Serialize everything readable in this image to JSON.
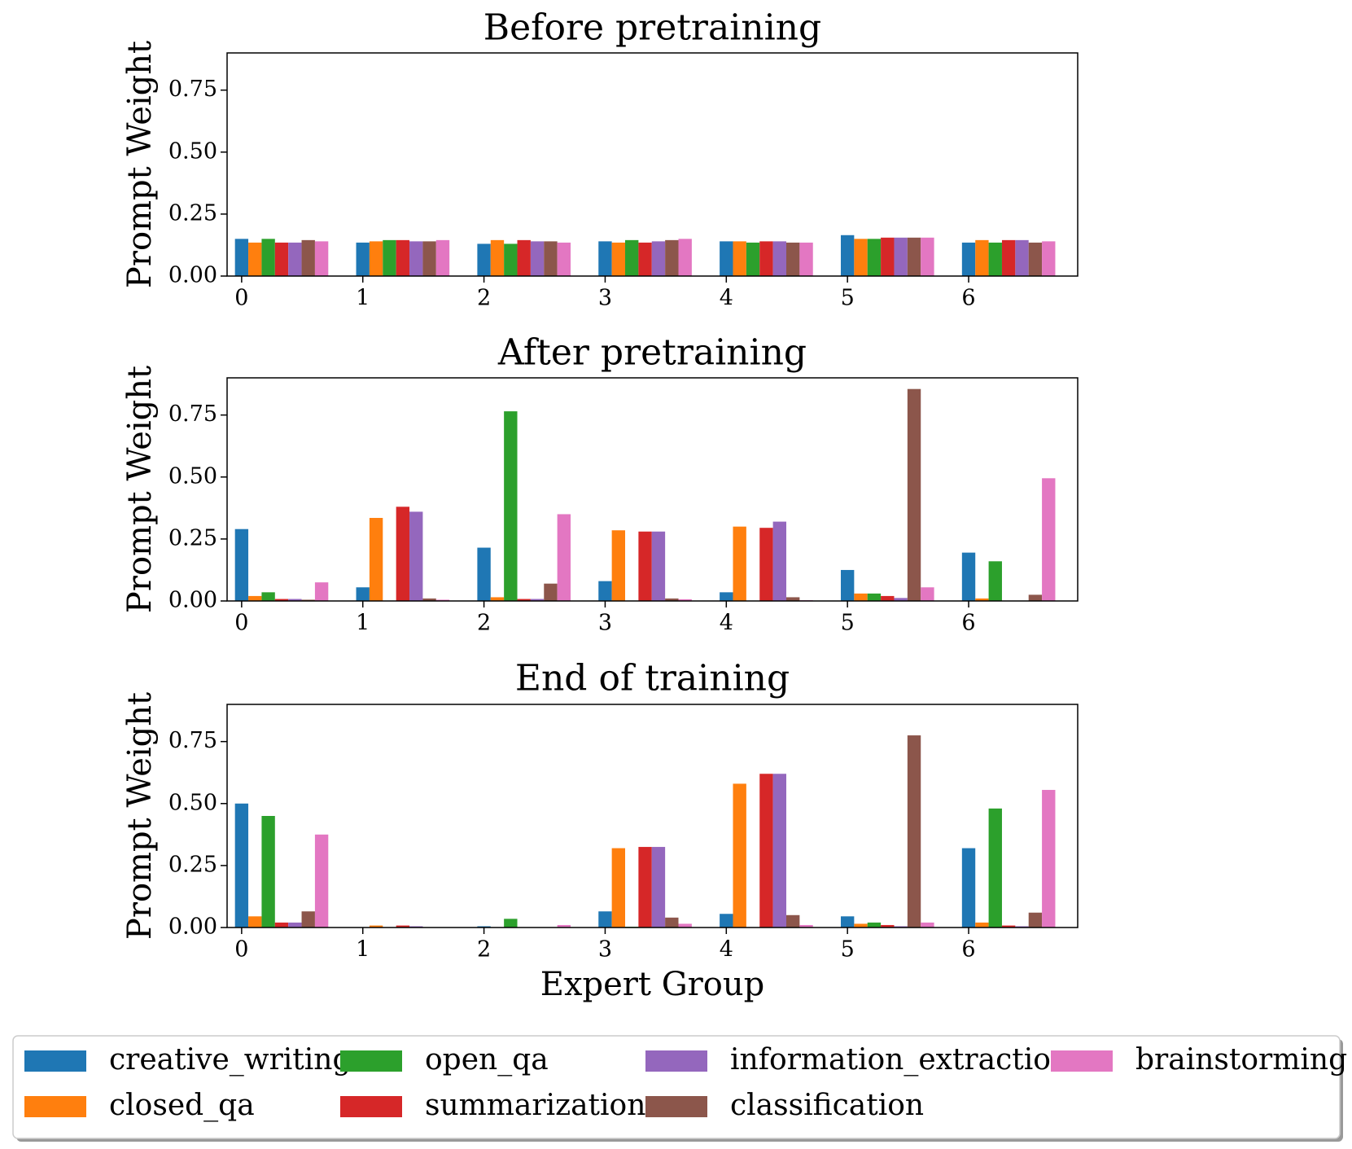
{
  "chart_data": [
    {
      "type": "bar",
      "title": "Before pretraining",
      "y_label": "Prompt Weight",
      "categories": [
        "0",
        "1",
        "2",
        "3",
        "4",
        "5",
        "6"
      ],
      "xlim": [
        -0.12,
        6.9
      ],
      "ylim": [
        0,
        0.9
      ],
      "yticks": [
        {
          "value": 0,
          "label": "0.00"
        },
        {
          "value": 0.25,
          "label": "0.25"
        },
        {
          "value": 0.5,
          "label": "0.50"
        },
        {
          "value": 0.75,
          "label": "0.75"
        }
      ],
      "series": [
        {
          "name": "creative_writing",
          "color": "#1f77b4",
          "values": [
            0.15,
            0.135,
            0.13,
            0.14,
            0.14,
            0.165,
            0.135
          ]
        },
        {
          "name": "closed_qa",
          "color": "#ff7f0e",
          "values": [
            0.135,
            0.14,
            0.145,
            0.135,
            0.14,
            0.15,
            0.145
          ]
        },
        {
          "name": "open_qa",
          "color": "#2ca02c",
          "values": [
            0.15,
            0.145,
            0.13,
            0.145,
            0.135,
            0.15,
            0.135
          ]
        },
        {
          "name": "summarization",
          "color": "#d62728",
          "values": [
            0.135,
            0.145,
            0.145,
            0.135,
            0.14,
            0.155,
            0.145
          ]
        },
        {
          "name": "information_extraction",
          "color": "#9467bd",
          "values": [
            0.135,
            0.14,
            0.14,
            0.14,
            0.14,
            0.155,
            0.145
          ]
        },
        {
          "name": "classification",
          "color": "#8c564b",
          "values": [
            0.145,
            0.14,
            0.14,
            0.145,
            0.135,
            0.155,
            0.135
          ]
        },
        {
          "name": "brainstorming",
          "color": "#e377c2",
          "values": [
            0.14,
            0.145,
            0.135,
            0.15,
            0.135,
            0.155,
            0.14
          ]
        }
      ]
    },
    {
      "type": "bar",
      "title": "After pretraining",
      "y_label": "Prompt Weight",
      "categories": [
        "0",
        "1",
        "2",
        "3",
        "4",
        "5",
        "6"
      ],
      "xlim": [
        -0.12,
        6.9
      ],
      "ylim": [
        0,
        0.9
      ],
      "yticks": [
        {
          "value": 0,
          "label": "0.00"
        },
        {
          "value": 0.25,
          "label": "0.25"
        },
        {
          "value": 0.5,
          "label": "0.50"
        },
        {
          "value": 0.75,
          "label": "0.75"
        }
      ],
      "series": [
        {
          "values": [
            0.29,
            0.055,
            0.215,
            0.08,
            0.035,
            0.125,
            0.195
          ]
        },
        {
          "values": [
            0.02,
            0.335,
            0.015,
            0.285,
            0.3,
            0.03,
            0.01
          ]
        },
        {
          "values": [
            0.035,
            0,
            0.765,
            0,
            0,
            0.03,
            0.16
          ]
        },
        {
          "values": [
            0.008,
            0.38,
            0.008,
            0.28,
            0.295,
            0.02,
            0
          ]
        },
        {
          "values": [
            0.008,
            0.36,
            0.008,
            0.28,
            0.32,
            0.012,
            0
          ]
        },
        {
          "values": [
            0.005,
            0.01,
            0.07,
            0.01,
            0.015,
            0.855,
            0.025
          ]
        },
        {
          "values": [
            0.075,
            0.005,
            0.35,
            0.007,
            0.003,
            0.055,
            0.495
          ]
        }
      ]
    },
    {
      "type": "bar",
      "title": "End of training",
      "y_label": "Prompt Weight",
      "x_label": "Expert Group",
      "categories": [
        "0",
        "1",
        "2",
        "3",
        "4",
        "5",
        "6"
      ],
      "xlim": [
        -0.12,
        6.9
      ],
      "ylim": [
        0,
        0.9
      ],
      "yticks": [
        {
          "value": 0,
          "label": "0.00"
        },
        {
          "value": 0.25,
          "label": "0.25"
        },
        {
          "value": 0.5,
          "label": "0.50"
        },
        {
          "value": 0.75,
          "label": "0.75"
        }
      ],
      "series": [
        {
          "values": [
            0.5,
            0,
            0.005,
            0.065,
            0.055,
            0.045,
            0.32
          ]
        },
        {
          "values": [
            0.045,
            0.008,
            0,
            0.32,
            0.58,
            0.015,
            0.02
          ]
        },
        {
          "values": [
            0.45,
            0,
            0.035,
            0.003,
            0,
            0.02,
            0.48
          ]
        },
        {
          "values": [
            0.02,
            0.008,
            0,
            0.325,
            0.62,
            0.01,
            0.008
          ]
        },
        {
          "values": [
            0.02,
            0.005,
            0,
            0.325,
            0.62,
            0.005,
            0.005
          ]
        },
        {
          "values": [
            0.065,
            0,
            0,
            0.04,
            0.05,
            0.775,
            0.06
          ]
        },
        {
          "values": [
            0.375,
            0,
            0.01,
            0.015,
            0.01,
            0.02,
            0.555
          ]
        }
      ]
    }
  ]
}
